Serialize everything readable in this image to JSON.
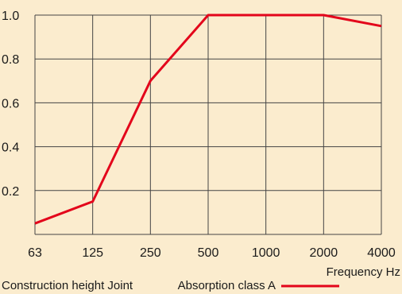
{
  "chart_data": {
    "type": "line",
    "x": [
      "63",
      "125",
      "250",
      "500",
      "1000",
      "2000",
      "4000"
    ],
    "series": [
      {
        "name": "Absorption class A",
        "values": [
          0.05,
          0.15,
          0.7,
          1.0,
          1.0,
          1.0,
          0.95
        ]
      }
    ],
    "ylim": [
      0,
      1.0
    ],
    "yticks": [
      "1.0",
      "0.8",
      "0.6",
      "0.4",
      "0.2"
    ],
    "xlabel": "Frequency Hz",
    "ylabel": "",
    "grid": true,
    "line_color": "#e3051b",
    "background": "#fbecce"
  },
  "footer": {
    "left_text": "Construction height Joint",
    "legend_label": "Absorption class A"
  }
}
